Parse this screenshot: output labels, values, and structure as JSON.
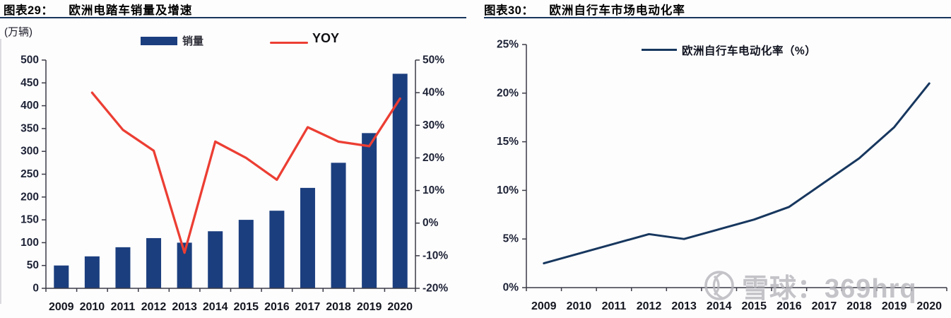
{
  "theme": {
    "underline_color": "#17365d",
    "axis_color": "#3b3b47",
    "tick_label_color": "#1d2235",
    "bar_color": "#1b3e7e",
    "yoy_line_color": "#ec3e33",
    "elec_line_color": "#17375e",
    "watermark_color": "#b3b3b9"
  },
  "watermark": {
    "logo": "xueqiu-snowball-icon",
    "text": "雪球：369hrq"
  },
  "chart_data": [
    {
      "type": "bar+line",
      "figure_label": "图表29：",
      "title": "欧洲电踏车销量及增速",
      "unit_label": "(万辆)",
      "categories": [
        "2009",
        "2010",
        "2011",
        "2012",
        "2013",
        "2014",
        "2015",
        "2016",
        "2017",
        "2018",
        "2019",
        "2020"
      ],
      "series": [
        {
          "name": "销量",
          "kind": "bar",
          "axis": "left",
          "color": "#1b3e7e",
          "values": [
            50,
            70,
            90,
            110,
            100,
            125,
            150,
            170,
            220,
            275,
            340,
            470
          ]
        },
        {
          "name": "YOY",
          "kind": "line",
          "axis": "right",
          "color": "#ec3e33",
          "values": [
            null,
            40.0,
            28.6,
            22.2,
            -9.1,
            25.0,
            20.0,
            13.3,
            29.4,
            25.0,
            23.6,
            38.2
          ]
        }
      ],
      "left_axis": {
        "min": 0,
        "max": 500,
        "step": 50,
        "format": "number"
      },
      "right_axis": {
        "min": -20,
        "max": 50,
        "step": 10,
        "format": "percent"
      },
      "legend_position": "top",
      "grid": false
    },
    {
      "type": "line",
      "figure_label": "图表30：",
      "title": "欧洲自行车市场电动化率",
      "categories": [
        "2009",
        "2010",
        "2011",
        "2012",
        "2013",
        "2014",
        "2015",
        "2016",
        "2017",
        "2018",
        "2019",
        "2020"
      ],
      "series": [
        {
          "name": "欧洲自行车电动化率（%）",
          "kind": "line",
          "axis": "left",
          "color": "#17375e",
          "values": [
            2.5,
            3.5,
            4.5,
            5.5,
            5.0,
            6.0,
            7.0,
            8.3,
            10.8,
            13.3,
            16.5,
            21.0
          ]
        }
      ],
      "left_axis": {
        "min": 0,
        "max": 25,
        "step": 5,
        "format": "percent"
      },
      "legend_position": "top-center",
      "grid": false
    }
  ]
}
